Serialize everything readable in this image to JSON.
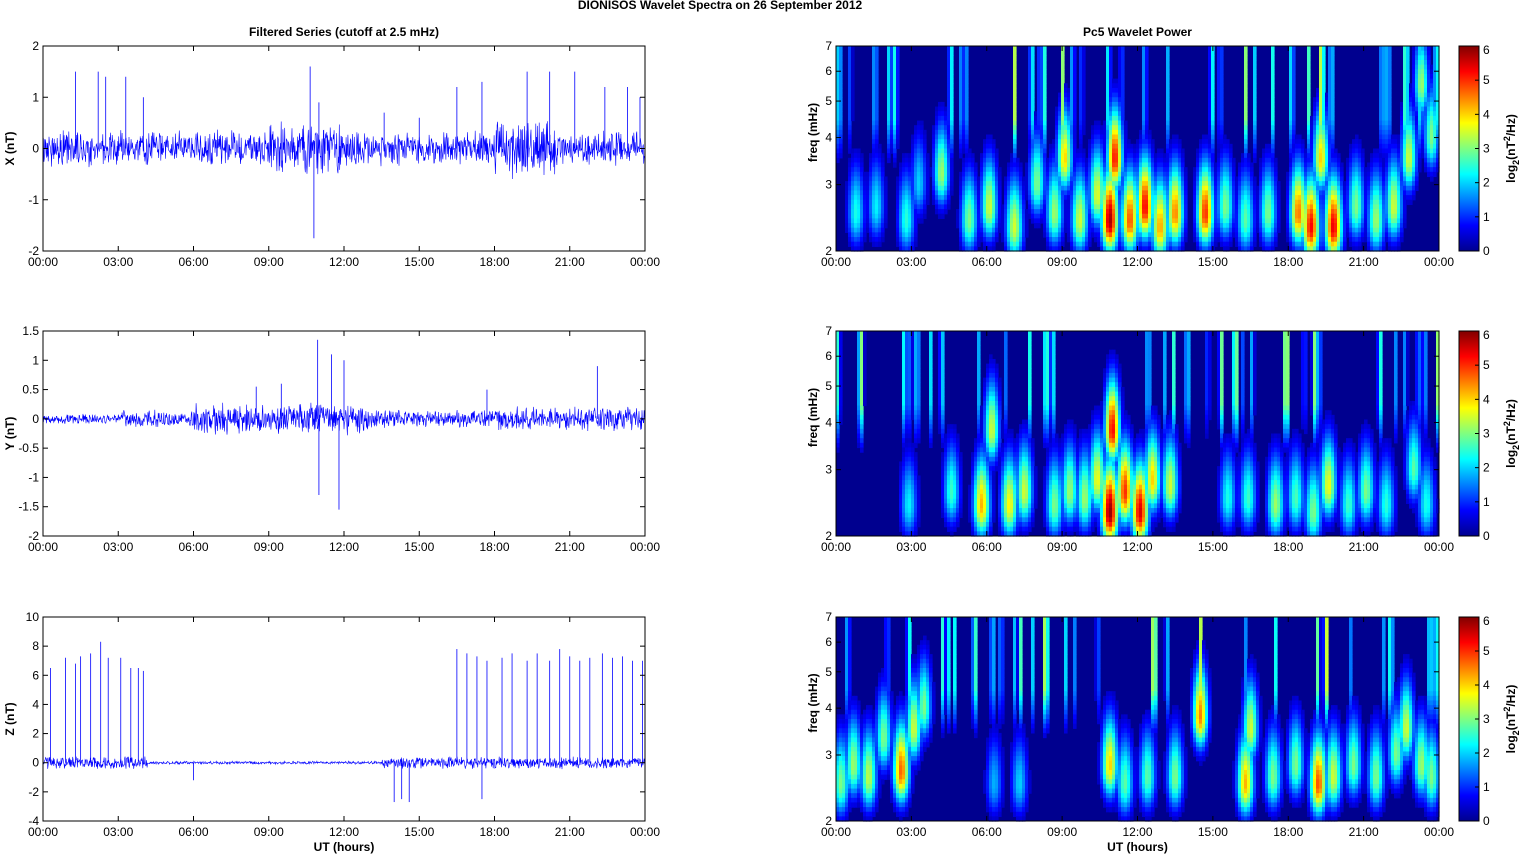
{
  "figure": {
    "suptitle": "DIONISOS Wavelet Spectra on 26 September 2012"
  },
  "colors": {
    "trace": "#0000ff",
    "axes": "#000000",
    "background": "#ffffff",
    "colormap": "jet",
    "spectrogram_floor": "#00008f"
  },
  "chart_data": [
    {
      "type": "line",
      "title": "Filtered Series (cutoff at 2.5 mHz)",
      "ylabel": "X (nT)",
      "xlabel": "",
      "xticklabels": [
        "00:00",
        "03:00",
        "06:00",
        "09:00",
        "12:00",
        "15:00",
        "18:00",
        "21:00",
        "00:00"
      ],
      "xlim_hours": [
        0,
        24
      ],
      "ylim": [
        -2,
        2
      ],
      "yticks": [
        -2,
        -1,
        0,
        1,
        2
      ],
      "grid": false,
      "noise_amplitude": 0.25,
      "spikes": [
        [
          1.3,
          1.5
        ],
        [
          2.2,
          1.5
        ],
        [
          2.5,
          1.4
        ],
        [
          3.3,
          1.4
        ],
        [
          4.0,
          1.0
        ],
        [
          10.65,
          1.6
        ],
        [
          10.8,
          -1.75
        ],
        [
          11.0,
          0.9
        ],
        [
          13.6,
          0.7
        ],
        [
          15.0,
          0.6
        ],
        [
          16.5,
          1.2
        ],
        [
          17.5,
          1.3
        ],
        [
          19.3,
          1.5
        ],
        [
          20.2,
          1.5
        ],
        [
          21.2,
          1.5
        ],
        [
          22.4,
          1.2
        ],
        [
          23.3,
          1.2
        ],
        [
          23.8,
          1.0
        ]
      ]
    },
    {
      "type": "line",
      "title": "",
      "ylabel": "Y (nT)",
      "xlabel": "",
      "xticklabels": [
        "00:00",
        "03:00",
        "06:00",
        "09:00",
        "12:00",
        "15:00",
        "18:00",
        "21:00",
        "00:00"
      ],
      "xlim_hours": [
        0,
        24
      ],
      "ylim": [
        -2,
        1.5
      ],
      "yticks": [
        -2,
        -1.5,
        -1,
        -0.5,
        0,
        0.5,
        1,
        1.5
      ],
      "grid": false,
      "noise_amplitude": 0.12,
      "spikes": [
        [
          10.95,
          1.35
        ],
        [
          11.0,
          -1.3
        ],
        [
          11.5,
          1.1
        ],
        [
          11.8,
          -1.55
        ],
        [
          12.0,
          1.0
        ],
        [
          8.5,
          0.55
        ],
        [
          9.5,
          0.6
        ],
        [
          22.1,
          0.9
        ],
        [
          17.7,
          0.5
        ]
      ]
    },
    {
      "type": "line",
      "title": "",
      "ylabel": "Z (nT)",
      "xlabel": "UT (hours)",
      "xticklabels": [
        "00:00",
        "03:00",
        "06:00",
        "09:00",
        "12:00",
        "15:00",
        "18:00",
        "21:00",
        "00:00"
      ],
      "xlim_hours": [
        0,
        24
      ],
      "ylim": [
        -4,
        10
      ],
      "yticks": [
        -4,
        -2,
        0,
        2,
        4,
        6,
        8,
        10
      ],
      "grid": false,
      "noise_amplitude": 0.3,
      "spikes": [
        [
          0.3,
          6.5
        ],
        [
          0.9,
          7.2
        ],
        [
          1.3,
          6.8
        ],
        [
          1.5,
          7.3
        ],
        [
          1.9,
          7.5
        ],
        [
          2.3,
          8.3
        ],
        [
          2.6,
          7.2
        ],
        [
          3.1,
          7.2
        ],
        [
          3.5,
          6.5
        ],
        [
          3.8,
          6.5
        ],
        [
          4.0,
          6.3
        ],
        [
          16.5,
          7.8
        ],
        [
          16.9,
          7.5
        ],
        [
          17.3,
          7.3
        ],
        [
          17.7,
          7.0
        ],
        [
          18.3,
          7.2
        ],
        [
          18.7,
          7.5
        ],
        [
          19.3,
          7.0
        ],
        [
          19.7,
          7.5
        ],
        [
          20.2,
          7.0
        ],
        [
          20.6,
          7.8
        ],
        [
          21.0,
          7.3
        ],
        [
          21.4,
          7.0
        ],
        [
          21.8,
          7.2
        ],
        [
          22.3,
          7.5
        ],
        [
          22.7,
          7.2
        ],
        [
          23.1,
          7.3
        ],
        [
          23.5,
          7.0
        ],
        [
          23.9,
          7.0
        ],
        [
          14.0,
          -2.7
        ],
        [
          14.3,
          -2.5
        ],
        [
          14.6,
          -2.7
        ],
        [
          17.5,
          -2.5
        ],
        [
          6.0,
          -1.2
        ]
      ]
    },
    {
      "type": "heatmap",
      "title": "Pc5 Wavelet Power",
      "ylabel": "freq (mHz)",
      "xlabel": "",
      "xticklabels": [
        "00:00",
        "03:00",
        "06:00",
        "09:00",
        "12:00",
        "15:00",
        "18:00",
        "21:00",
        "00:00"
      ],
      "xlim_hours": [
        0,
        24
      ],
      "ylim_mhz": [
        2,
        7
      ],
      "yscale": "log",
      "yticks": [
        2,
        3,
        4,
        5,
        6,
        7
      ],
      "colorbar": {
        "label": "log2(nT2/Hz)",
        "label_main": "log",
        "label_sub": "2",
        "label_mid": "(nT",
        "label_sup": "2",
        "label_end": "/Hz)",
        "range": [
          0,
          6
        ],
        "ticks": [
          0,
          1,
          2,
          3,
          4,
          5,
          6
        ]
      },
      "blobs": [
        [
          0.8,
          2.5,
          2.4
        ],
        [
          1.6,
          2.6,
          2.2
        ],
        [
          2.8,
          2.4,
          2.5
        ],
        [
          3.3,
          3.0,
          2.0
        ],
        [
          4.2,
          3.2,
          3.2
        ],
        [
          5.3,
          2.4,
          3.0
        ],
        [
          6.1,
          2.6,
          3.5
        ],
        [
          7.1,
          2.3,
          3.5
        ],
        [
          8.0,
          3.0,
          3.0
        ],
        [
          8.7,
          2.5,
          3.2
        ],
        [
          9.1,
          3.5,
          4.0
        ],
        [
          9.7,
          2.4,
          3.5
        ],
        [
          10.4,
          2.8,
          3.6
        ],
        [
          10.9,
          2.4,
          5.8
        ],
        [
          11.1,
          3.5,
          5.2
        ],
        [
          11.7,
          2.4,
          4.8
        ],
        [
          12.3,
          2.6,
          5.3
        ],
        [
          12.9,
          2.3,
          4.3
        ],
        [
          13.5,
          2.5,
          4.5
        ],
        [
          14.7,
          2.5,
          5.0
        ],
        [
          15.5,
          2.6,
          3.0
        ],
        [
          16.3,
          2.4,
          2.8
        ],
        [
          17.2,
          2.5,
          3.0
        ],
        [
          18.4,
          2.5,
          4.6
        ],
        [
          18.9,
          2.3,
          5.3
        ],
        [
          19.3,
          3.5,
          4.0
        ],
        [
          19.8,
          2.3,
          5.4
        ],
        [
          20.7,
          2.6,
          3.0
        ],
        [
          21.5,
          2.4,
          3.2
        ],
        [
          22.2,
          2.6,
          3.5
        ],
        [
          22.8,
          3.5,
          3.5
        ],
        [
          23.3,
          5.5,
          3.2
        ],
        [
          23.7,
          4.0,
          3.0
        ]
      ]
    },
    {
      "type": "heatmap",
      "title": "",
      "ylabel": "freq (mHz)",
      "xlabel": "",
      "xticklabels": [
        "00:00",
        "03:00",
        "06:00",
        "09:00",
        "12:00",
        "15:00",
        "18:00",
        "21:00",
        "00:00"
      ],
      "xlim_hours": [
        0,
        24
      ],
      "ylim_mhz": [
        2,
        7
      ],
      "yscale": "log",
      "yticks": [
        2,
        3,
        4,
        5,
        6,
        7
      ],
      "colorbar": {
        "label": "log2(nT2/Hz)",
        "label_main": "log",
        "label_sub": "2",
        "label_mid": "(nT",
        "label_sup": "2",
        "label_end": "/Hz)",
        "range": [
          0,
          6
        ],
        "ticks": [
          0,
          1,
          2,
          3,
          4,
          5,
          6
        ]
      },
      "blobs": [
        [
          2.9,
          2.4,
          2.2
        ],
        [
          4.6,
          2.6,
          2.6
        ],
        [
          5.8,
          2.4,
          4.2
        ],
        [
          6.2,
          3.8,
          3.5
        ],
        [
          6.9,
          2.4,
          3.8
        ],
        [
          7.5,
          2.6,
          3.5
        ],
        [
          8.7,
          2.4,
          3.0
        ],
        [
          9.3,
          2.6,
          3.2
        ],
        [
          9.9,
          2.5,
          3.2
        ],
        [
          10.4,
          2.8,
          3.7
        ],
        [
          10.9,
          2.3,
          5.9
        ],
        [
          11.0,
          3.8,
          5.3
        ],
        [
          11.5,
          2.6,
          5.0
        ],
        [
          12.1,
          2.3,
          5.5
        ],
        [
          12.6,
          2.8,
          4.0
        ],
        [
          13.3,
          2.7,
          3.5
        ],
        [
          15.6,
          2.5,
          2.4
        ],
        [
          16.4,
          2.5,
          2.6
        ],
        [
          17.5,
          2.4,
          3.2
        ],
        [
          18.3,
          2.5,
          2.7
        ],
        [
          19.0,
          2.3,
          3.0
        ],
        [
          19.6,
          2.7,
          3.7
        ],
        [
          20.4,
          2.4,
          2.6
        ],
        [
          21.1,
          2.6,
          3.0
        ],
        [
          21.9,
          2.4,
          2.5
        ],
        [
          23.0,
          3.0,
          2.8
        ],
        [
          23.5,
          2.4,
          2.4
        ]
      ]
    },
    {
      "type": "heatmap",
      "title": "",
      "ylabel": "freq (mHz)",
      "xlabel": "UT (hours)",
      "xticklabels": [
        "00:00",
        "03:00",
        "06:00",
        "09:00",
        "12:00",
        "15:00",
        "18:00",
        "21:00",
        "00:00"
      ],
      "xlim_hours": [
        0,
        24
      ],
      "ylim_mhz": [
        2,
        7
      ],
      "yscale": "log",
      "yticks": [
        2,
        3,
        4,
        5,
        6,
        7
      ],
      "colorbar": {
        "label": "log2(nT2/Hz)",
        "label_main": "log",
        "label_sub": "2",
        "label_mid": "(nT",
        "label_sup": "2",
        "label_end": "/Hz)",
        "range": [
          0,
          6
        ],
        "ticks": [
          0,
          1,
          2,
          3,
          4,
          5,
          6
        ]
      },
      "blobs": [
        [
          0.2,
          2.5,
          3.0
        ],
        [
          0.7,
          2.8,
          3.2
        ],
        [
          1.3,
          2.6,
          3.4
        ],
        [
          1.9,
          3.3,
          3.0
        ],
        [
          2.6,
          2.7,
          4.7
        ],
        [
          3.1,
          3.5,
          3.5
        ],
        [
          3.5,
          4.0,
          3.0
        ],
        [
          6.3,
          2.5,
          1.8
        ],
        [
          7.3,
          2.5,
          2.0
        ],
        [
          10.9,
          2.8,
          4.0
        ],
        [
          11.5,
          2.5,
          2.8
        ],
        [
          12.4,
          2.6,
          2.8
        ],
        [
          13.5,
          2.6,
          3.0
        ],
        [
          14.5,
          3.8,
          4.5
        ],
        [
          16.3,
          2.5,
          4.2
        ],
        [
          16.5,
          3.5,
          3.5
        ],
        [
          17.4,
          2.6,
          3.0
        ],
        [
          18.3,
          2.8,
          3.0
        ],
        [
          19.2,
          2.5,
          4.8
        ],
        [
          19.8,
          2.6,
          3.5
        ],
        [
          20.6,
          2.8,
          3.0
        ],
        [
          21.5,
          2.6,
          3.0
        ],
        [
          22.3,
          3.0,
          3.0
        ],
        [
          22.7,
          3.5,
          3.5
        ],
        [
          23.3,
          2.8,
          3.2
        ],
        [
          23.7,
          2.6,
          3.0
        ]
      ]
    }
  ]
}
